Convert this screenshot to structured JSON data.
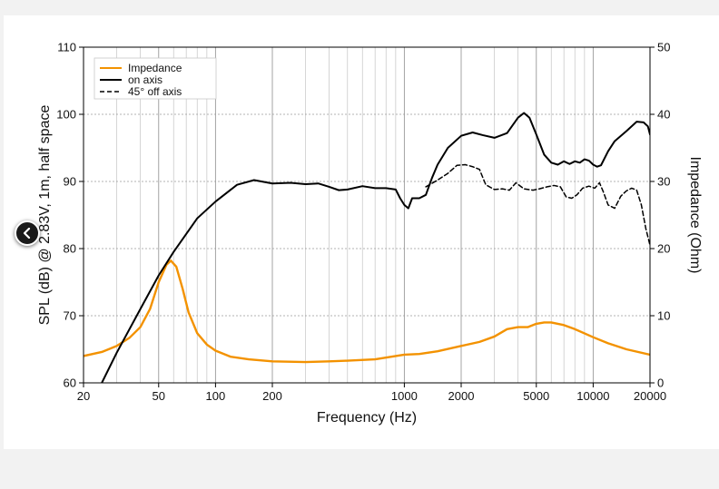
{
  "chart_data": {
    "type": "line",
    "xlabel": "Frequency (Hz)",
    "ylabel": "SPL (dB) @ 2.83V, 1m, half space",
    "ylabel_right": "Impedance (Ohm)",
    "x_scale": "log",
    "xlim": [
      20,
      20000
    ],
    "ylim": [
      60,
      110
    ],
    "ylim_right": [
      0,
      50
    ],
    "x_ticks": [
      20,
      50,
      100,
      200,
      1000,
      2000,
      5000,
      10000,
      20000
    ],
    "x_tick_labels": [
      "20",
      "50",
      "100",
      "200",
      "1000",
      "2000",
      "5000",
      "10000",
      "20000"
    ],
    "y_ticks": [
      60,
      70,
      80,
      90,
      100,
      110
    ],
    "y_tick_labels": [
      "60",
      "70",
      "80",
      "90",
      "100",
      "110"
    ],
    "y_right_ticks": [
      0,
      10,
      20,
      30,
      40,
      50
    ],
    "y_right_tick_labels": [
      "0",
      "10",
      "20",
      "30",
      "40",
      "50"
    ],
    "grid": true,
    "legend_position": "top-left",
    "series": [
      {
        "name": "Impedance",
        "axis": "right",
        "color": "#f39200",
        "style": "solid",
        "points": [
          [
            20,
            4
          ],
          [
            25,
            4.6
          ],
          [
            30,
            5.5
          ],
          [
            35,
            6.7
          ],
          [
            40,
            8.3
          ],
          [
            45,
            11
          ],
          [
            50,
            15
          ],
          [
            55,
            17.6
          ],
          [
            58,
            18.2
          ],
          [
            62,
            17.3
          ],
          [
            67,
            14
          ],
          [
            72,
            10.5
          ],
          [
            80,
            7.4
          ],
          [
            90,
            5.7
          ],
          [
            100,
            4.8
          ],
          [
            120,
            3.9
          ],
          [
            150,
            3.5
          ],
          [
            200,
            3.2
          ],
          [
            300,
            3.1
          ],
          [
            400,
            3.2
          ],
          [
            500,
            3.3
          ],
          [
            700,
            3.5
          ],
          [
            900,
            4.0
          ],
          [
            1000,
            4.2
          ],
          [
            1200,
            4.3
          ],
          [
            1500,
            4.7
          ],
          [
            2000,
            5.5
          ],
          [
            2500,
            6.1
          ],
          [
            3000,
            6.9
          ],
          [
            3500,
            8.0
          ],
          [
            4000,
            8.3
          ],
          [
            4500,
            8.3
          ],
          [
            5000,
            8.8
          ],
          [
            5500,
            9.0
          ],
          [
            6000,
            9.0
          ],
          [
            7000,
            8.6
          ],
          [
            8000,
            8.0
          ],
          [
            10000,
            6.8
          ],
          [
            12000,
            5.9
          ],
          [
            15000,
            5.0
          ],
          [
            20000,
            4.2
          ]
        ]
      },
      {
        "name": "on axis",
        "axis": "left",
        "color": "#000000",
        "style": "solid",
        "points": [
          [
            25,
            60
          ],
          [
            30,
            64.5
          ],
          [
            40,
            71
          ],
          [
            50,
            76
          ],
          [
            60,
            79.5
          ],
          [
            80,
            84.5
          ],
          [
            100,
            87
          ],
          [
            130,
            89.5
          ],
          [
            160,
            90.2
          ],
          [
            200,
            89.7
          ],
          [
            250,
            89.8
          ],
          [
            300,
            89.6
          ],
          [
            350,
            89.7
          ],
          [
            400,
            89.2
          ],
          [
            450,
            88.7
          ],
          [
            500,
            88.8
          ],
          [
            600,
            89.3
          ],
          [
            700,
            89.0
          ],
          [
            800,
            89.0
          ],
          [
            900,
            88.8
          ],
          [
            950,
            87.5
          ],
          [
            1000,
            86.5
          ],
          [
            1050,
            86.0
          ],
          [
            1100,
            87.5
          ],
          [
            1200,
            87.5
          ],
          [
            1300,
            88
          ],
          [
            1400,
            90.5
          ],
          [
            1500,
            92.5
          ],
          [
            1700,
            95
          ],
          [
            2000,
            96.8
          ],
          [
            2300,
            97.3
          ],
          [
            2600,
            96.9
          ],
          [
            3000,
            96.5
          ],
          [
            3500,
            97.2
          ],
          [
            4000,
            99.5
          ],
          [
            4300,
            100.2
          ],
          [
            4600,
            99.5
          ],
          [
            5000,
            97
          ],
          [
            5500,
            94
          ],
          [
            6000,
            92.8
          ],
          [
            6500,
            92.5
          ],
          [
            7000,
            93.0
          ],
          [
            7500,
            92.6
          ],
          [
            8000,
            93.0
          ],
          [
            8500,
            92.8
          ],
          [
            9000,
            93.3
          ],
          [
            9500,
            93.1
          ],
          [
            10000,
            92.5
          ],
          [
            10500,
            92.2
          ],
          [
            11000,
            92.4
          ],
          [
            12000,
            94.5
          ],
          [
            13000,
            96
          ],
          [
            15000,
            97.5
          ],
          [
            17000,
            98.9
          ],
          [
            18500,
            98.8
          ],
          [
            19500,
            98.2
          ],
          [
            20000,
            97
          ]
        ]
      },
      {
        "name": "45° off axis",
        "axis": "left",
        "color": "#000000",
        "style": "dashed",
        "points": [
          [
            1300,
            89.2
          ],
          [
            1500,
            90.2
          ],
          [
            1700,
            91.2
          ],
          [
            1900,
            92.4
          ],
          [
            2100,
            92.5
          ],
          [
            2300,
            92.2
          ],
          [
            2500,
            91.8
          ],
          [
            2700,
            89.5
          ],
          [
            3000,
            88.8
          ],
          [
            3300,
            88.9
          ],
          [
            3600,
            88.7
          ],
          [
            3900,
            89.8
          ],
          [
            4300,
            88.9
          ],
          [
            4800,
            88.7
          ],
          [
            5200,
            88.9
          ],
          [
            5700,
            89.2
          ],
          [
            6200,
            89.4
          ],
          [
            6700,
            89.2
          ],
          [
            7200,
            87.7
          ],
          [
            7700,
            87.5
          ],
          [
            8200,
            88.0
          ],
          [
            8800,
            89.0
          ],
          [
            9500,
            89.3
          ],
          [
            10200,
            89.0
          ],
          [
            10800,
            89.8
          ],
          [
            11300,
            88.5
          ],
          [
            12000,
            86.5
          ],
          [
            13000,
            86.0
          ],
          [
            14000,
            87.8
          ],
          [
            15000,
            88.6
          ],
          [
            16000,
            89.0
          ],
          [
            17000,
            88.7
          ],
          [
            18000,
            86.5
          ],
          [
            19000,
            83
          ],
          [
            20000,
            80.5
          ]
        ]
      }
    ]
  },
  "legend": {
    "items": [
      {
        "label": "Impedance",
        "color": "#f39200",
        "style": "solid"
      },
      {
        "label": "on axis",
        "color": "#000000",
        "style": "solid"
      },
      {
        "label": "45° off axis",
        "color": "#000000",
        "style": "dashed"
      }
    ]
  },
  "navigation": {
    "back_icon": "chevron-left-icon"
  }
}
